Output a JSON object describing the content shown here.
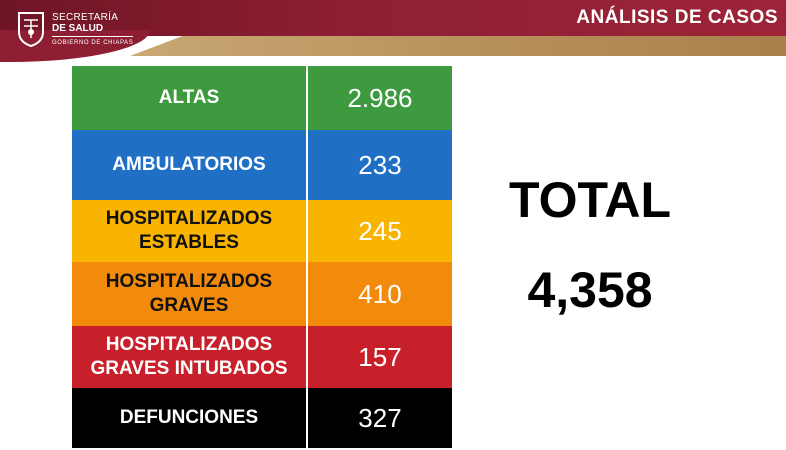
{
  "header": {
    "title": "ANÁLISIS DE CASOS",
    "logo": {
      "line1": "SECRETARÍA",
      "line2": "DE SALUD",
      "line3": "GOBIERNO DE CHIAPAS",
      "icon": "shield-emblem-icon"
    },
    "colors": {
      "bar": "#8e1f33",
      "accent": "#b58e59"
    }
  },
  "rows": [
    {
      "label": "ALTAS",
      "value": "2.986",
      "bg": "#3d9a3f",
      "text_color": "#ffffff"
    },
    {
      "label": "AMBULATORIOS",
      "value": "233",
      "bg": "#1f6fc5",
      "text_color": "#ffffff"
    },
    {
      "label": "HOSPITALIZADOS ESTABLES",
      "value": "245",
      "bg": "#f8b400",
      "text_color": "#111111"
    },
    {
      "label": "HOSPITALIZADOS GRAVES",
      "value": "410",
      "bg": "#f28a0c",
      "text_color": "#111111"
    },
    {
      "label": "HOSPITALIZADOS GRAVES INTUBADOS",
      "value": "157",
      "bg": "#c8202a",
      "text_color": "#ffffff"
    },
    {
      "label": "DEFUNCIONES",
      "value": "327",
      "bg": "#000000",
      "text_color": "#ffffff"
    }
  ],
  "total": {
    "label": "TOTAL",
    "value": "4,358"
  }
}
